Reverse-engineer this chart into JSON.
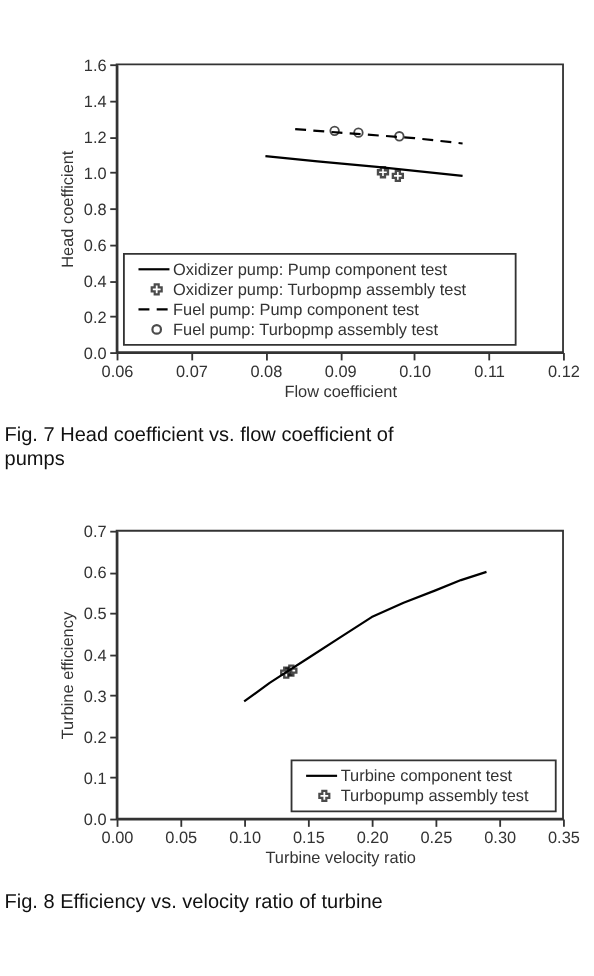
{
  "chart_data": [
    {
      "type": "line",
      "xlabel": "Flow coefficient",
      "ylabel": "Head coefficient",
      "xlim": [
        0.06,
        0.12
      ],
      "xticks": [
        {
          "value": 0.06,
          "label": "0.06"
        },
        {
          "value": 0.07,
          "label": "0.07"
        },
        {
          "value": 0.08,
          "label": "0.08"
        },
        {
          "value": 0.09,
          "label": "0.09"
        },
        {
          "value": 0.1,
          "label": "0.10"
        },
        {
          "value": 0.11,
          "label": "0.11"
        },
        {
          "value": 0.12,
          "label": "0.12"
        }
      ],
      "ylim": [
        0,
        1.6
      ],
      "yticks": [
        {
          "value": 0,
          "label": "0.0"
        },
        {
          "value": 0.2,
          "label": "0.2"
        },
        {
          "value": 0.4,
          "label": "0.4"
        },
        {
          "value": 0.6,
          "label": "0.6"
        },
        {
          "value": 0.8,
          "label": "0.8"
        },
        {
          "value": 1,
          "label": "1.0"
        },
        {
          "value": 1.2,
          "label": "1.2"
        },
        {
          "value": 1.4,
          "label": "1.4"
        },
        {
          "value": 1.6,
          "label": "1.6"
        }
      ],
      "legend": "bottom",
      "grid": false,
      "series": [
        {
          "name": "Oxidizer pump: Pump component test",
          "type": "line",
          "line_style": "solid",
          "marker": "none",
          "color": "#000000",
          "x": [
            0.08,
            0.087,
            0.095,
            0.1065
          ],
          "values": [
            1.09,
            1.06,
            1.03,
            0.98
          ]
        },
        {
          "name": "Oxidizer pump: Turbopmp assembly test",
          "type": "scatter",
          "marker": "cross",
          "color": "#000000",
          "x": [
            0.0958,
            0.0978
          ],
          "values": [
            1.0,
            0.98
          ]
        },
        {
          "name": "Fuel pump: Pump component test",
          "type": "line",
          "line_style": "dashed",
          "marker": "none",
          "color": "#000000",
          "x": [
            0.084,
            0.09,
            0.1,
            0.1065
          ],
          "values": [
            1.24,
            1.22,
            1.19,
            1.16
          ]
        },
        {
          "name": "Fuel pump: Turbopmp assembly test",
          "type": "scatter",
          "marker": "circle",
          "color": "#000000",
          "x": [
            0.0893,
            0.0925,
            0.098
          ],
          "values": [
            1.23,
            1.22,
            1.2
          ]
        }
      ],
      "annotations": [
        "Fig. 7 Head coefficient vs. flow coefficient of pumps"
      ]
    },
    {
      "type": "line",
      "xlabel": "Turbine velocity ratio",
      "ylabel": "Turbine efficiency",
      "xlim": [
        0,
        0.35
      ],
      "xticks": [
        {
          "value": 0,
          "label": "0.00"
        },
        {
          "value": 0.05,
          "label": "0.05"
        },
        {
          "value": 0.1,
          "label": "0.10"
        },
        {
          "value": 0.15,
          "label": "0.15"
        },
        {
          "value": 0.2,
          "label": "0.20"
        },
        {
          "value": 0.25,
          "label": "0.25"
        },
        {
          "value": 0.3,
          "label": "0.30"
        },
        {
          "value": 0.35,
          "label": "0.35"
        }
      ],
      "ylim": [
        0,
        0.7
      ],
      "yticks": [
        {
          "value": 0,
          "label": "0.0"
        },
        {
          "value": 0.1,
          "label": "0.1"
        },
        {
          "value": 0.2,
          "label": "0.2"
        },
        {
          "value": 0.3,
          "label": "0.3"
        },
        {
          "value": 0.4,
          "label": "0.4"
        },
        {
          "value": 0.5,
          "label": "0.5"
        },
        {
          "value": 0.6,
          "label": "0.6"
        },
        {
          "value": 0.7,
          "label": "0.7"
        }
      ],
      "legend": "bottom right",
      "grid": false,
      "series": [
        {
          "name": "Turbine component test",
          "type": "line",
          "line_style": "solid",
          "marker": "none",
          "color": "#000000",
          "x": [
            0.1,
            0.12,
            0.13,
            0.15,
            0.175,
            0.2,
            0.225,
            0.25,
            0.27,
            0.29
          ],
          "values": [
            0.285,
            0.33,
            0.35,
            0.39,
            0.44,
            0.49,
            0.525,
            0.555,
            0.58,
            0.6
          ]
        },
        {
          "name": "Turbopump assembly test",
          "type": "scatter",
          "marker": "cross",
          "color": "#000000",
          "x": [
            0.133,
            0.137
          ],
          "values": [
            0.355,
            0.36
          ]
        }
      ],
      "annotations": [
        "Fig. 8 Efficiency vs. velocity ratio of turbine"
      ]
    }
  ]
}
